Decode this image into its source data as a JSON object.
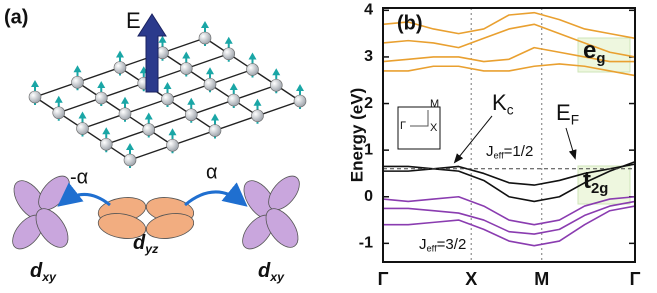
{
  "panel_a": {
    "label": "(a)",
    "field_label": "E",
    "hoppings": [
      "-α",
      "α"
    ],
    "orbitals": [
      {
        "text": "d",
        "sub": "xy"
      },
      {
        "text": "d",
        "sub": "yz"
      },
      {
        "text": "d",
        "sub": "xy"
      }
    ]
  },
  "chart_data": {
    "type": "line",
    "panel_label": "(b)",
    "y_label": "Energy (eV)",
    "x": [
      0,
      0.1,
      0.2,
      0.3,
      0.4,
      0.5,
      0.6,
      0.7,
      0.8,
      0.9,
      1
    ],
    "xlim": [
      0,
      1
    ],
    "xticks": [
      {
        "value": 0,
        "label": "Γ"
      },
      {
        "value": 0.35,
        "label": "X"
      },
      {
        "value": 0.63,
        "label": "M"
      },
      {
        "value": 1,
        "label": "Γ"
      }
    ],
    "ylim": [
      -1.4,
      4.05
    ],
    "yticks": [
      -1,
      0,
      1,
      2,
      3,
      4
    ],
    "fermi_level": 0.6,
    "series": [
      {
        "color": "#e9a030",
        "values": [
          3.7,
          3.75,
          3.6,
          3.5,
          3.6,
          3.9,
          3.95,
          3.8,
          3.6,
          3.5,
          3.4
        ]
      },
      {
        "color": "#e9a030",
        "values": [
          3.3,
          3.35,
          3.3,
          3.2,
          3.4,
          3.6,
          3.7,
          3.5,
          3.3,
          3.1,
          3.0
        ]
      },
      {
        "color": "#e9a030",
        "values": [
          2.9,
          2.95,
          3.0,
          3.0,
          2.9,
          2.95,
          3.2,
          3.1,
          3.0,
          2.9,
          2.9
        ]
      },
      {
        "color": "#e9a030",
        "values": [
          2.7,
          2.7,
          2.8,
          2.8,
          2.7,
          2.7,
          2.8,
          2.85,
          2.8,
          2.7,
          2.6
        ]
      },
      {
        "color": "#111111",
        "values": [
          0.55,
          0.55,
          0.6,
          0.65,
          0.5,
          0.3,
          0.25,
          0.35,
          0.5,
          0.6,
          0.7
        ]
      },
      {
        "color": "#111111",
        "values": [
          0.65,
          0.65,
          0.6,
          0.55,
          0.35,
          0.0,
          -0.1,
          0.0,
          0.3,
          0.55,
          0.75
        ]
      },
      {
        "color": "#8a3cb0",
        "values": [
          -0.05,
          -0.1,
          -0.05,
          0,
          -0.2,
          -0.5,
          -0.6,
          -0.5,
          -0.2,
          -0.05,
          0
        ]
      },
      {
        "color": "#8a3cb0",
        "values": [
          -0.25,
          -0.25,
          -0.3,
          -0.35,
          -0.5,
          -0.75,
          -0.8,
          -0.7,
          -0.4,
          -0.2,
          -0.1
        ]
      },
      {
        "color": "#8a3cb0",
        "values": [
          -0.6,
          -0.6,
          -0.55,
          -0.5,
          -0.7,
          -0.95,
          -1.05,
          -0.95,
          -0.6,
          -0.3,
          -0.2
        ]
      }
    ],
    "annotations": {
      "kc": {
        "text": "K",
        "sub": "c"
      },
      "ef": {
        "text": "E",
        "sub": "F"
      },
      "eg": {
        "text": "e",
        "sub": "g"
      },
      "t2g": {
        "text": "t",
        "sub": "2g"
      },
      "jeff_half": {
        "text": "J",
        "sub": "eff",
        "rest": "=1/2"
      },
      "jeff_three_half": {
        "text": "J",
        "sub": "eff",
        "rest": "=3/2"
      },
      "inset": [
        "M",
        "Γ",
        "X"
      ]
    }
  }
}
